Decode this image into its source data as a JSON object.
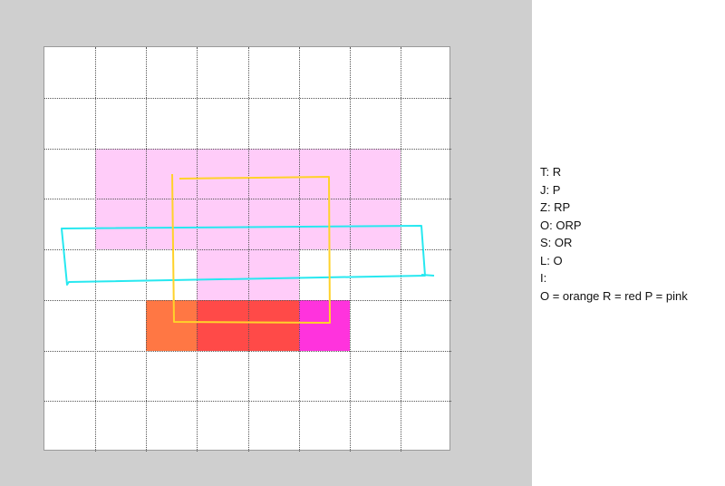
{
  "board": {
    "columns": 8,
    "rows": 8,
    "colors": {
      "pink": "#ffccf9",
      "orange": "#ff7744",
      "red": "#ff4a48",
      "magenta": "#ff33dd",
      "yellow_stroke": "#ffd22a",
      "cyan_stroke": "#27e8f0"
    },
    "cells": [
      {
        "col": 1,
        "row": 2,
        "color": "pink"
      },
      {
        "col": 2,
        "row": 2,
        "color": "pink"
      },
      {
        "col": 3,
        "row": 2,
        "color": "pink"
      },
      {
        "col": 4,
        "row": 2,
        "color": "pink"
      },
      {
        "col": 5,
        "row": 2,
        "color": "pink"
      },
      {
        "col": 6,
        "row": 2,
        "color": "pink"
      },
      {
        "col": 1,
        "row": 3,
        "color": "pink"
      },
      {
        "col": 2,
        "row": 3,
        "color": "pink"
      },
      {
        "col": 3,
        "row": 3,
        "color": "pink"
      },
      {
        "col": 4,
        "row": 3,
        "color": "pink"
      },
      {
        "col": 5,
        "row": 3,
        "color": "pink"
      },
      {
        "col": 6,
        "row": 3,
        "color": "pink"
      },
      {
        "col": 3,
        "row": 4,
        "color": "pink"
      },
      {
        "col": 4,
        "row": 4,
        "color": "pink"
      },
      {
        "col": 2,
        "row": 5,
        "color": "orange"
      },
      {
        "col": 3,
        "row": 5,
        "color": "red"
      },
      {
        "col": 4,
        "row": 5,
        "color": "red"
      },
      {
        "col": 5,
        "row": 5,
        "color": "magenta"
      }
    ]
  },
  "legend": {
    "lines": [
      "T: R",
      "J: P",
      "Z: RP",
      "O: ORP",
      "S: OR",
      "L: O",
      "I:",
      "O = orange R = red P = pink"
    ]
  }
}
